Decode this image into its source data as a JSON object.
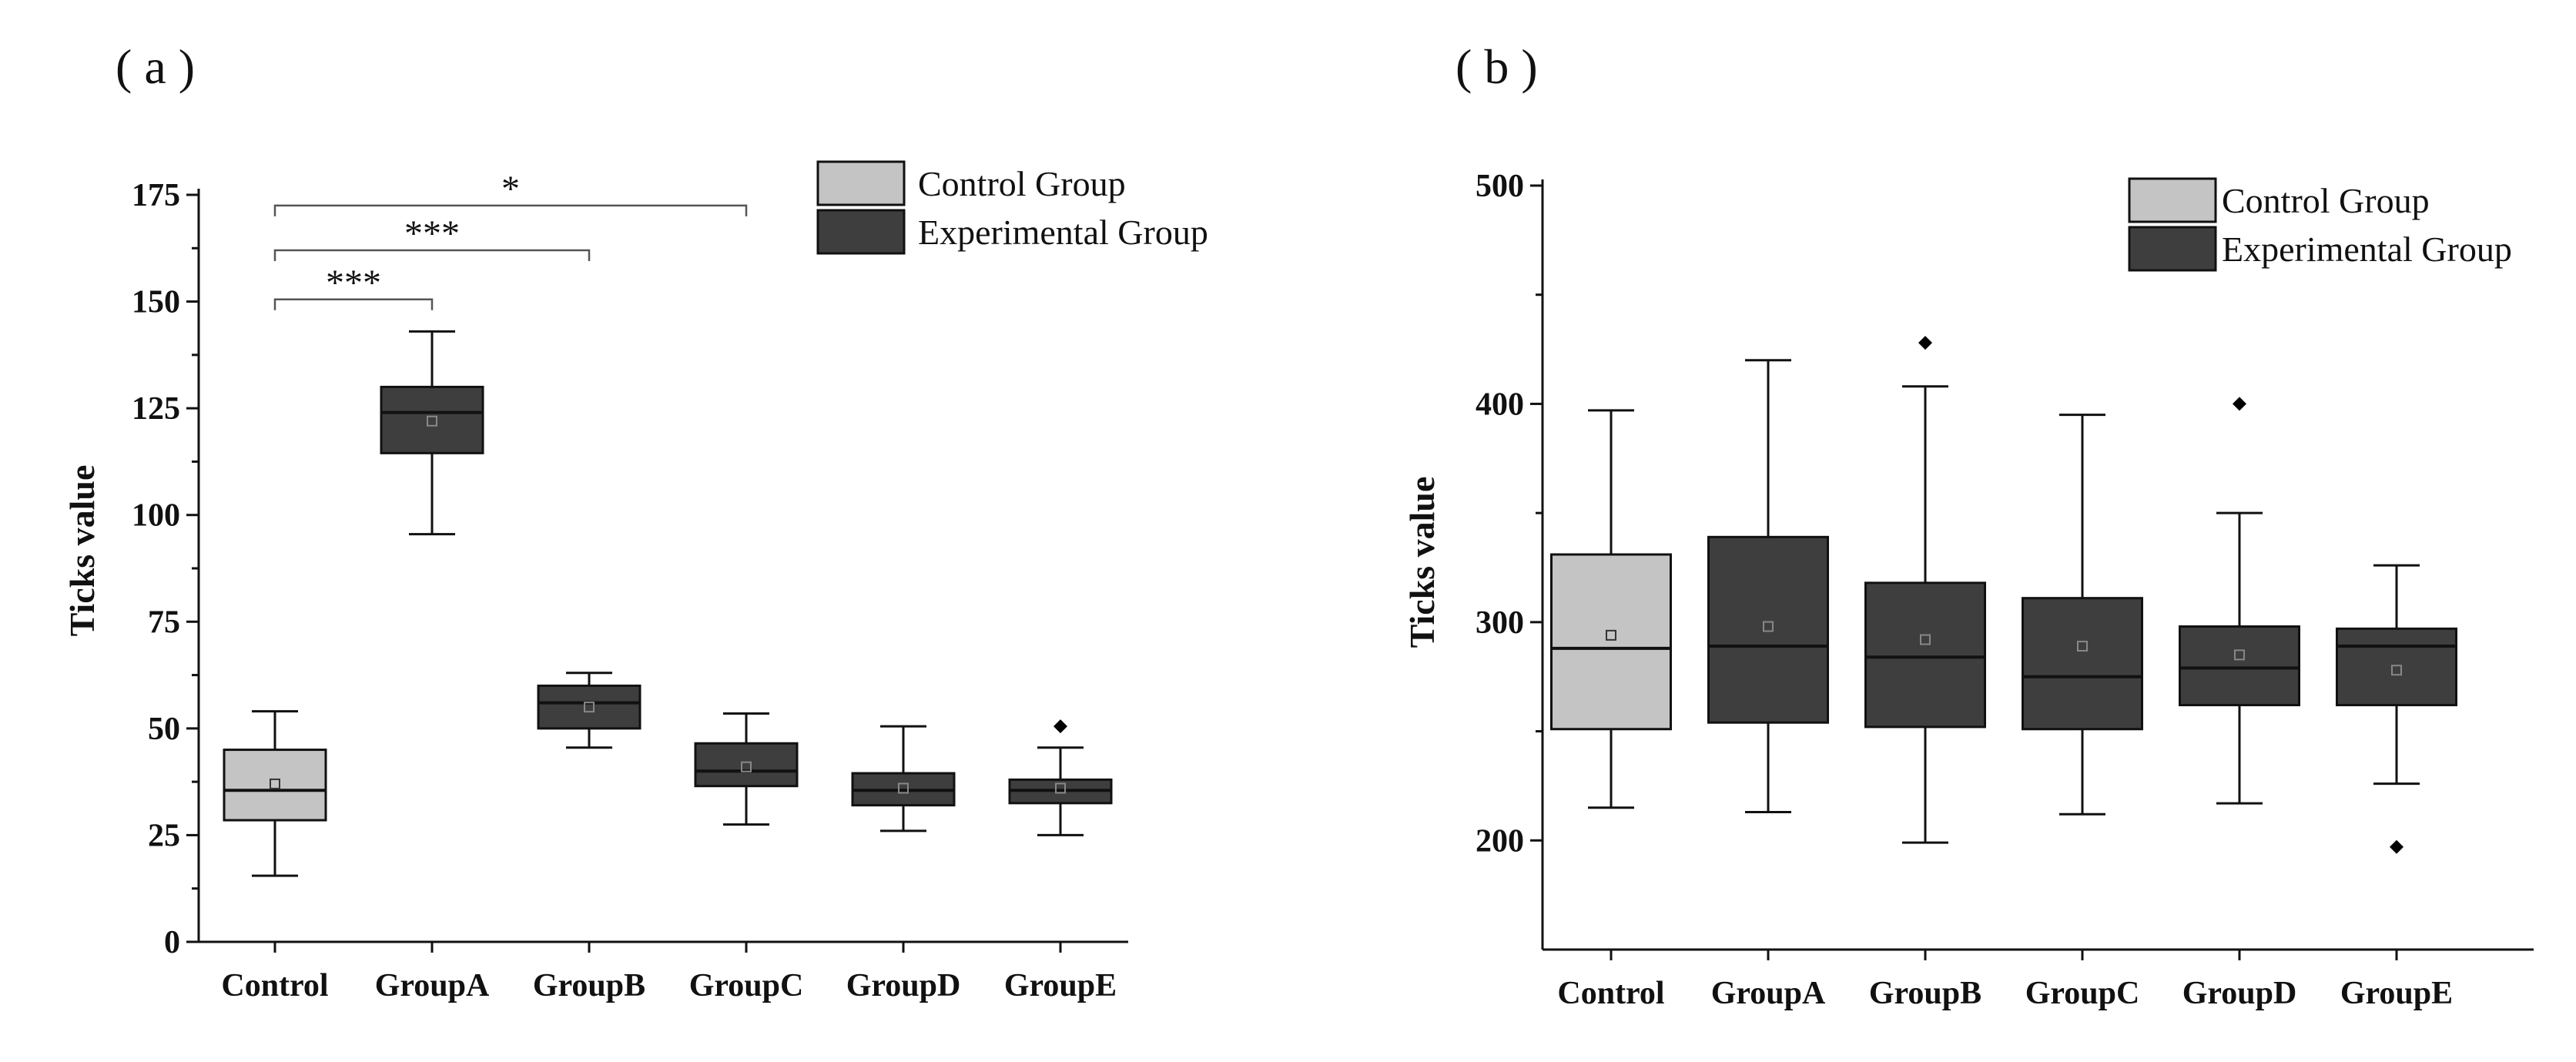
{
  "colors": {
    "control_fill": "#c4c4c4",
    "experimental_fill": "#3e3e3e",
    "stroke": "#111111",
    "median_line": "#111111",
    "bracket": "#555555"
  },
  "chart_data": [
    {
      "type": "box",
      "panel_label": "( a )",
      "title": "",
      "xlabel": "",
      "ylabel": "Ticks value",
      "ylim": [
        0,
        175
      ],
      "yticks": [
        0,
        25,
        50,
        75,
        100,
        125,
        150,
        175
      ],
      "ytick_labels": [
        "0",
        "25",
        "50",
        "75",
        "100",
        "125",
        "150",
        "175"
      ],
      "categories": [
        "Control",
        "GroupA",
        "GroupB",
        "GroupC",
        "GroupD",
        "GroupE"
      ],
      "legend": {
        "placement": "top-right",
        "entries": [
          {
            "label": "Control Group",
            "group": "control"
          },
          {
            "label": "Experimental Group",
            "group": "experimental"
          }
        ]
      },
      "boxes": [
        {
          "category": "Control",
          "group": "control",
          "min": 15.5,
          "q1": 28.5,
          "median": 35.5,
          "q3": 45,
          "max": 54,
          "mean": 37,
          "outliers": []
        },
        {
          "category": "GroupA",
          "group": "experimental",
          "min": 95.5,
          "q1": 114.5,
          "median": 124,
          "q3": 130,
          "max": 143,
          "mean": 122,
          "outliers": []
        },
        {
          "category": "GroupB",
          "group": "experimental",
          "min": 45.5,
          "q1": 50,
          "median": 56,
          "q3": 60,
          "max": 63,
          "mean": 55,
          "outliers": []
        },
        {
          "category": "GroupC",
          "group": "experimental",
          "min": 27.5,
          "q1": 36.5,
          "median": 40,
          "q3": 46.5,
          "max": 53.5,
          "mean": 41,
          "outliers": []
        },
        {
          "category": "GroupD",
          "group": "experimental",
          "min": 26,
          "q1": 32,
          "median": 35.5,
          "q3": 39.5,
          "max": 50.5,
          "mean": 36,
          "outliers": []
        },
        {
          "category": "GroupE",
          "group": "experimental",
          "min": 25,
          "q1": 32.5,
          "median": 35.5,
          "q3": 38,
          "max": 45.5,
          "mean": 36,
          "outliers": [
            50.5
          ]
        }
      ],
      "significance": [
        {
          "from": "Control",
          "to": "GroupA",
          "label": "***",
          "level": 150.5
        },
        {
          "from": "Control",
          "to": "GroupB",
          "label": "***",
          "level": 162
        },
        {
          "from": "Control",
          "to": "GroupC",
          "label": "*",
          "level": 172.5
        }
      ]
    },
    {
      "type": "box",
      "panel_label": "( b )",
      "title": "",
      "xlabel": "",
      "ylabel": "Ticks value",
      "ylim": [
        150,
        500
      ],
      "yticks": [
        200,
        300,
        400,
        500
      ],
      "ytick_labels": [
        "200",
        "300",
        "400",
        "500"
      ],
      "categories": [
        "Control",
        "GroupA",
        "GroupB",
        "GroupC",
        "GroupD",
        "GroupE"
      ],
      "legend": {
        "placement": "top-right",
        "entries": [
          {
            "label": "Control Group",
            "group": "control"
          },
          {
            "label": "Experimental Group",
            "group": "experimental"
          }
        ]
      },
      "boxes": [
        {
          "category": "Control",
          "group": "control",
          "min": 215,
          "q1": 251,
          "median": 288,
          "q3": 331,
          "max": 397,
          "mean": 294,
          "outliers": []
        },
        {
          "category": "GroupA",
          "group": "experimental",
          "min": 213,
          "q1": 254,
          "median": 289,
          "q3": 339,
          "max": 420,
          "mean": 298,
          "outliers": []
        },
        {
          "category": "GroupB",
          "group": "experimental",
          "min": 199,
          "q1": 252,
          "median": 284,
          "q3": 318,
          "max": 408,
          "mean": 292,
          "outliers": [
            428
          ]
        },
        {
          "category": "GroupC",
          "group": "experimental",
          "min": 212,
          "q1": 251,
          "median": 275,
          "q3": 311,
          "max": 395,
          "mean": 289,
          "outliers": []
        },
        {
          "category": "GroupD",
          "group": "experimental",
          "min": 217,
          "q1": 262,
          "median": 279,
          "q3": 298,
          "max": 350,
          "mean": 285,
          "outliers": [
            400
          ]
        },
        {
          "category": "GroupE",
          "group": "experimental",
          "min": 226,
          "q1": 262,
          "median": 289,
          "q3": 297,
          "max": 326,
          "mean": 278,
          "outliers": [
            197
          ]
        }
      ],
      "significance": []
    }
  ]
}
